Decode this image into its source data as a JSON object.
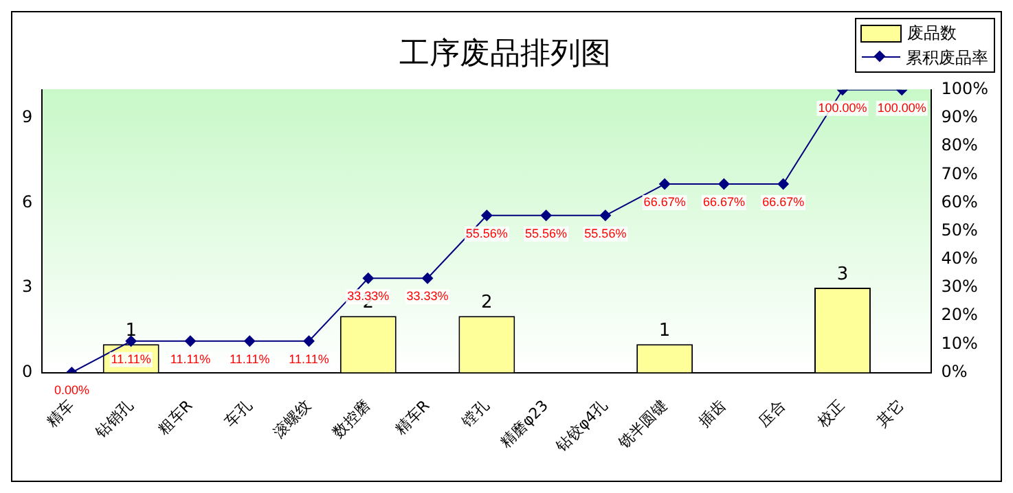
{
  "chart_data": {
    "type": "bar",
    "title": "工序废品排列图",
    "categories": [
      "精车",
      "钻销孔",
      "粗车R",
      "车孔",
      "滚螺纹",
      "数控磨",
      "精车R",
      "镗孔",
      "精磨φ23",
      "钻铰φ4孔",
      "铣半圆键",
      "插齿",
      "压合",
      "校正",
      "其它"
    ],
    "series": [
      {
        "name": "废品数",
        "color": "#ffff99",
        "values": [
          0,
          1,
          0,
          0,
          0,
          2,
          0,
          2,
          0,
          0,
          1,
          0,
          0,
          3,
          0
        ],
        "value_labels": [
          null,
          "1",
          null,
          null,
          null,
          "2",
          null,
          "2",
          null,
          null,
          "1",
          null,
          null,
          "3",
          null
        ]
      },
      {
        "name": "累积废品率",
        "type": "line",
        "axis": "y2",
        "color": "#000080",
        "values": [
          0,
          11.11,
          11.11,
          11.11,
          11.11,
          33.33,
          33.33,
          55.56,
          55.56,
          55.56,
          66.67,
          66.67,
          66.67,
          100,
          100
        ],
        "value_labels": [
          "0.00%",
          "11.11%",
          "11.11%",
          "11.11%",
          "11.11%",
          "33.33%",
          "33.33%",
          "55.56%",
          "55.56%",
          "55.56%",
          "66.67%",
          "66.67%",
          "66.67%",
          "100.00%",
          "100.00%"
        ]
      }
    ],
    "ylim": [
      0,
      10
    ],
    "yticks": [
      0,
      3,
      6,
      9
    ],
    "y2lim": [
      0,
      100
    ],
    "y2ticks": [
      {
        "value": 0,
        "label": "0%"
      },
      {
        "value": 10,
        "label": "10%"
      },
      {
        "value": 20,
        "label": "20%"
      },
      {
        "value": 30,
        "label": "30%"
      },
      {
        "value": 40,
        "label": "40%"
      },
      {
        "value": 50,
        "label": "50%"
      },
      {
        "value": 60,
        "label": "60%"
      },
      {
        "value": 70,
        "label": "70%"
      },
      {
        "value": 80,
        "label": "80%"
      },
      {
        "value": 90,
        "label": "90%"
      },
      {
        "value": 100,
        "label": "100%"
      }
    ],
    "legend": "top right",
    "marker": "diamond",
    "grid": false
  }
}
